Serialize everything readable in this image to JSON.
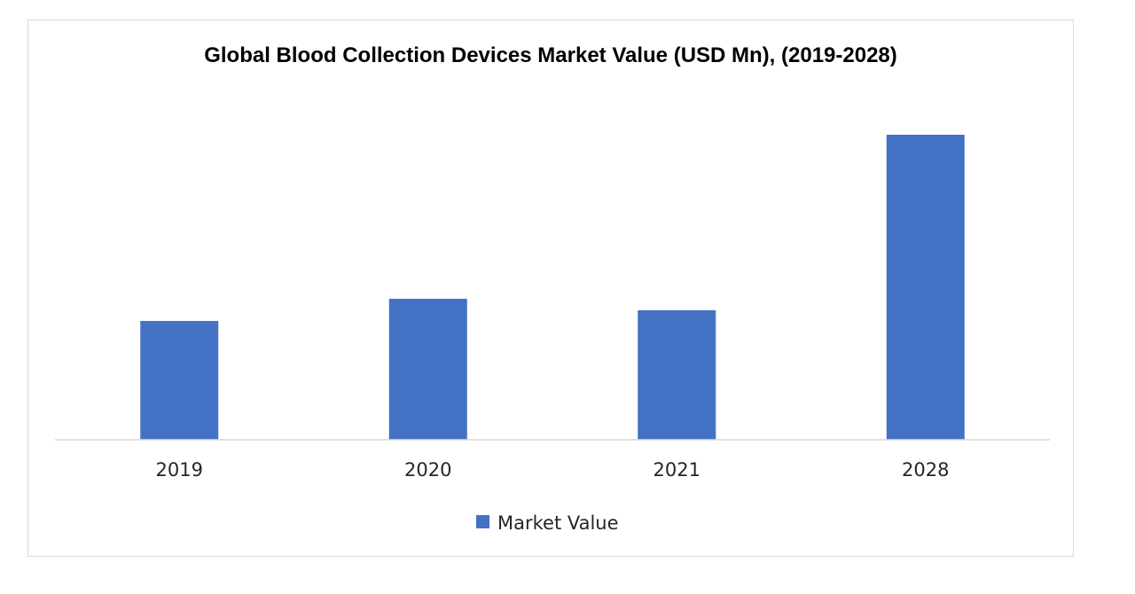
{
  "chart_data": {
    "type": "bar",
    "title": "Global Blood Collection Devices Market Value (USD Mn), (2019-2028)",
    "categories": [
      "2019",
      "2020",
      "2021",
      "2028"
    ],
    "series": [
      {
        "name": "Market Value",
        "color": "#4472c4",
        "values": [
          134,
          159,
          146,
          344
        ]
      }
    ],
    "xlabel": "",
    "ylabel": "",
    "ylim": [
      0,
      400
    ],
    "grid": false,
    "legend": "bottom-center"
  }
}
